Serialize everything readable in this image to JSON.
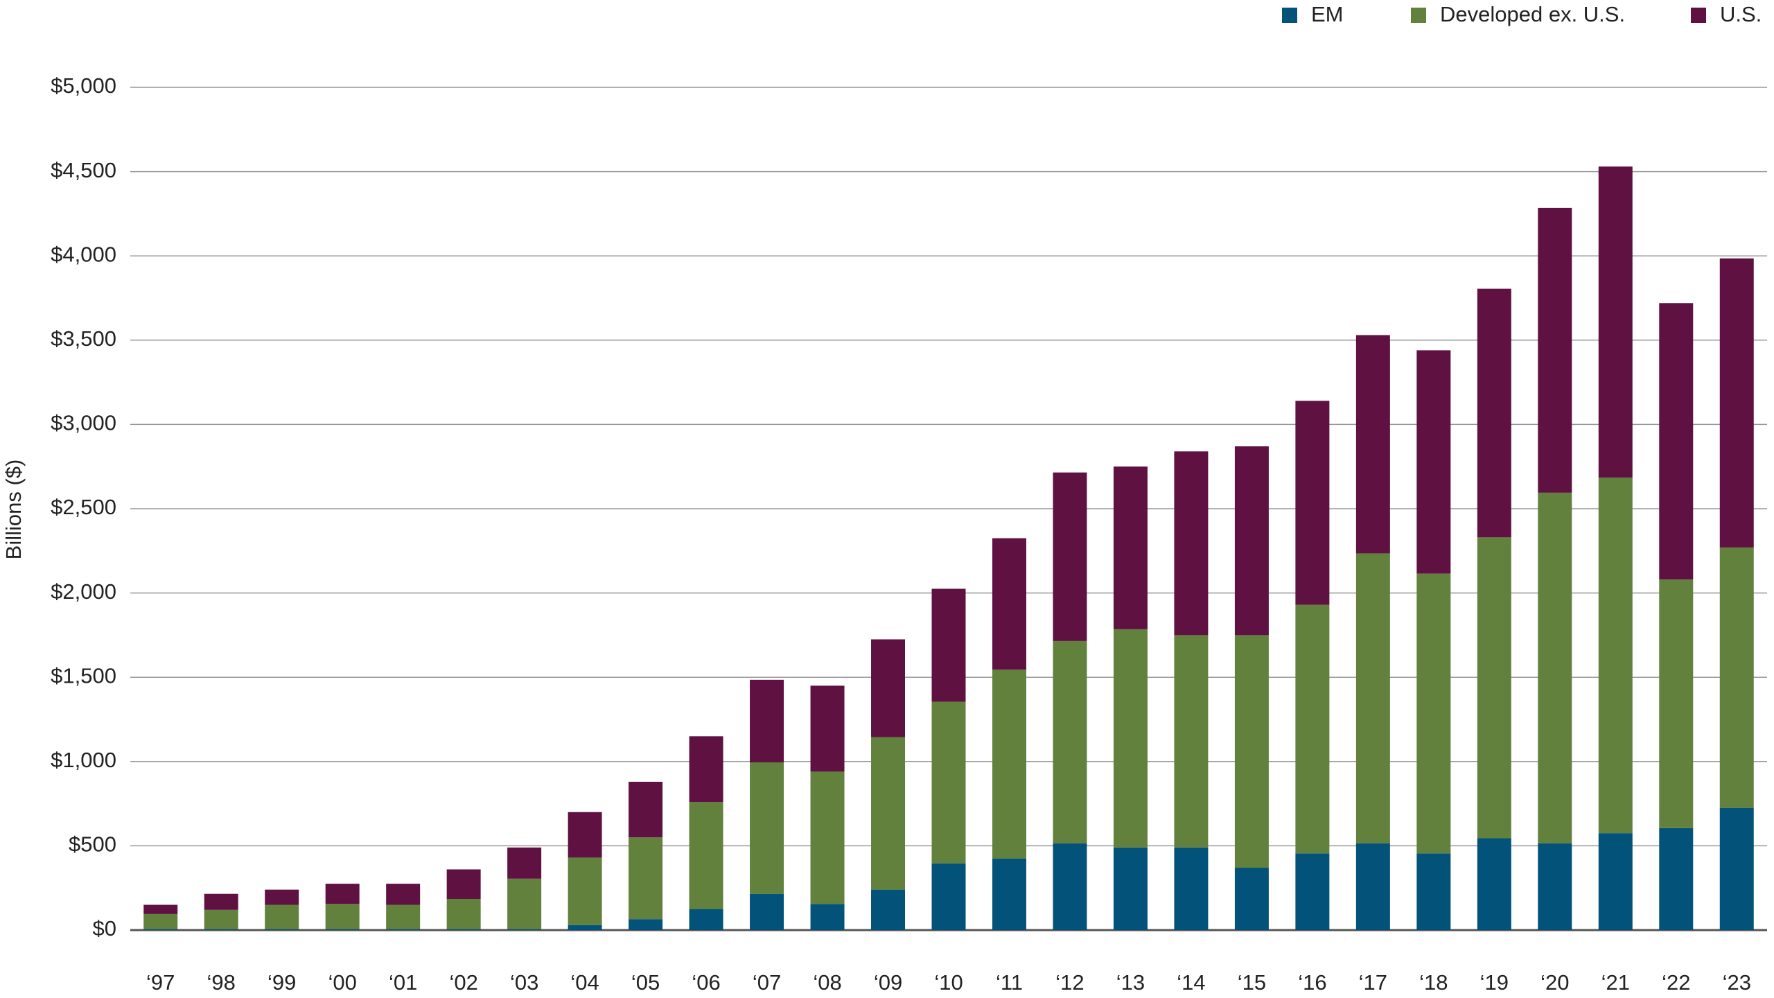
{
  "chart_data": {
    "type": "stacked_bar",
    "y_label": "Billions ($)",
    "categories": [
      "‘97",
      "‘98",
      "‘99",
      "‘00",
      "‘01",
      "‘02",
      "‘03",
      "‘04",
      "‘05",
      "‘06",
      "‘07",
      "‘08",
      "‘09",
      "‘10",
      "‘11",
      "‘12",
      "‘13",
      "‘14",
      "‘15",
      "‘16",
      "‘17",
      "‘18",
      "‘19",
      "‘20",
      "‘21",
      "‘22",
      "‘23"
    ],
    "series": [
      {
        "name": "EM",
        "color": "#02527a",
        "values": [
          5,
          5,
          5,
          5,
          5,
          5,
          5,
          30,
          65,
          125,
          215,
          155,
          240,
          395,
          425,
          515,
          490,
          490,
          370,
          455,
          515,
          455,
          545,
          515,
          575,
          605,
          725
        ]
      },
      {
        "name": "Developed ex. U.S.",
        "color": "#62813d",
        "values": [
          90,
          115,
          145,
          150,
          145,
          180,
          300,
          400,
          485,
          635,
          780,
          785,
          905,
          960,
          1120,
          1200,
          1295,
          1260,
          1380,
          1475,
          1720,
          1660,
          1785,
          2080,
          2110,
          1475,
          1545
        ]
      },
      {
        "name": "U.S.",
        "color": "#5f1242",
        "values": [
          55,
          95,
          90,
          120,
          125,
          175,
          185,
          270,
          330,
          390,
          490,
          510,
          580,
          670,
          780,
          1000,
          965,
          1090,
          1120,
          1210,
          1295,
          1325,
          1475,
          1690,
          1845,
          1640,
          1715
        ]
      }
    ],
    "ylim": [
      0,
      5000
    ],
    "yticks": [
      {
        "value": 0,
        "label": "$0"
      },
      {
        "value": 500,
        "label": "$500"
      },
      {
        "value": 1000,
        "label": "$1,000"
      },
      {
        "value": 1500,
        "label": "$1,500"
      },
      {
        "value": 2000,
        "label": "$2,000"
      },
      {
        "value": 2500,
        "label": "$2,500"
      },
      {
        "value": 3000,
        "label": "$3,000"
      },
      {
        "value": 3500,
        "label": "$3,500"
      },
      {
        "value": 4000,
        "label": "$4,000"
      },
      {
        "value": 4500,
        "label": "$4,500"
      },
      {
        "value": 5000,
        "label": "$5,000"
      }
    ],
    "grid": true,
    "legend": "top-right"
  }
}
